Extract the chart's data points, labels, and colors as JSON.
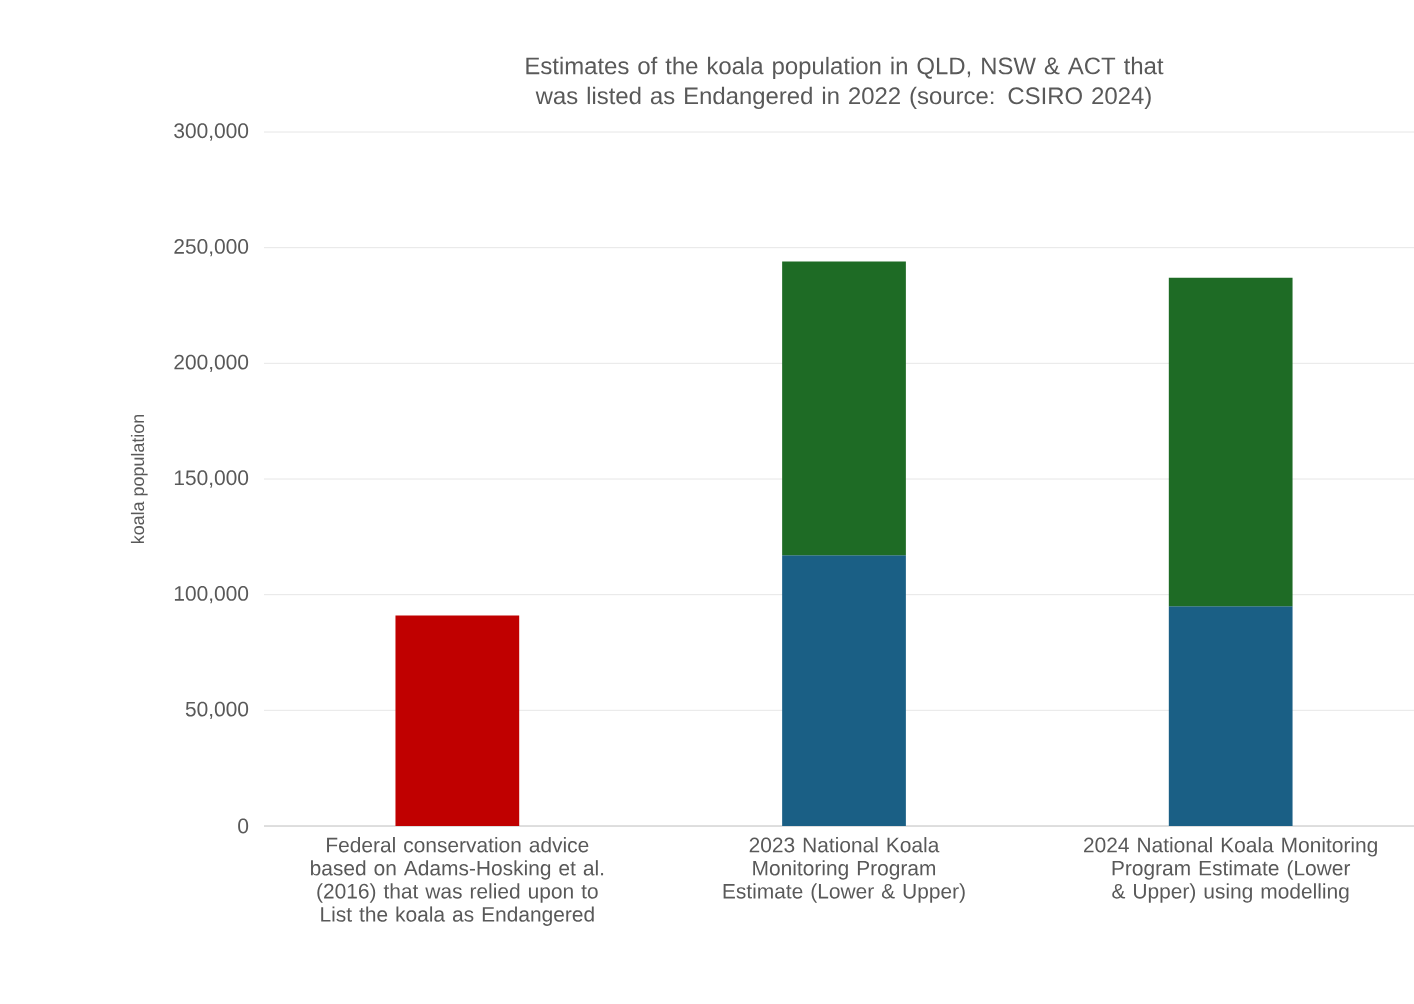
{
  "chart_data": {
    "type": "bar",
    "stacked": true,
    "title": "Estimates of  the koala population in QLD, NSW & ACT  that was listed as Endangered in 2022 (source: CSIRO 2024)",
    "ylabel": "koala population",
    "categories": [
      "Federal conservation advice based on Adams-Hosking et al. (2016) that was relied upon to List the koala as Endangered",
      "2023 National Koala Monitoring Program Estimate (Lower & Upper)",
      "2024 National Koala Monitoring Program Estimate (Lower & Upper) using modelling"
    ],
    "series": [
      {
        "values": [
          91000,
          117000,
          95000
        ],
        "colors": [
          "#c00000",
          "#1a5f85",
          "#1a5f85"
        ]
      },
      {
        "values": [
          null,
          127000,
          142000
        ],
        "color": "#1e6b25"
      }
    ],
    "ylim": [
      0,
      300000
    ],
    "yticks": [
      {
        "value": 0,
        "label": "0"
      },
      {
        "value": 50000,
        "label": "50,000"
      },
      {
        "value": 100000,
        "label": "100,000"
      },
      {
        "value": 150000,
        "label": "150,000"
      },
      {
        "value": 200000,
        "label": "200,000"
      },
      {
        "value": 250000,
        "label": "250,000"
      },
      {
        "value": 300000,
        "label": "300,000"
      }
    ],
    "grid": "y"
  }
}
